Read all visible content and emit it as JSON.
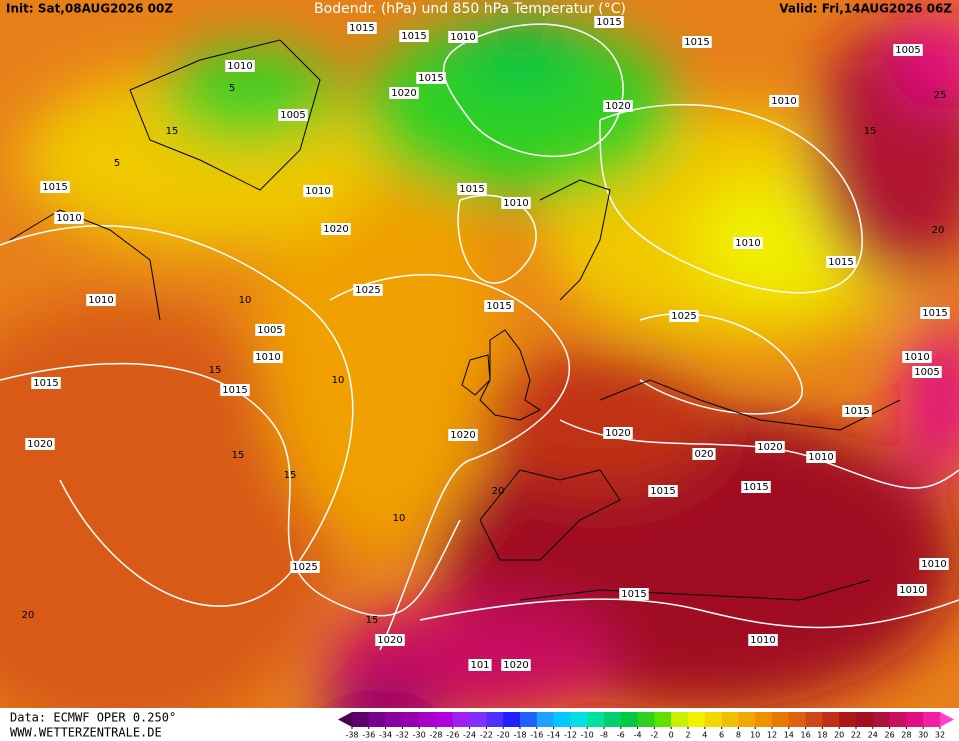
{
  "header": {
    "init": "Init: Sat,08AUG2026 00Z",
    "title": "Bodendr. (hPa) und 850 hPa Temperatur (°C)",
    "valid": "Valid: Fri,14AUG2026 06Z"
  },
  "footer": {
    "source": "Data: ECMWF OPER 0.250°",
    "site": "WWW.WETTERZENTRALE.DE"
  },
  "legend": {
    "ticks": [
      -38,
      -36,
      -34,
      -32,
      -30,
      -28,
      -26,
      -24,
      -22,
      -20,
      -18,
      -16,
      -14,
      -12,
      -10,
      -8,
      -6,
      -4,
      -2,
      0,
      2,
      4,
      6,
      8,
      10,
      12,
      14,
      16,
      18,
      20,
      22,
      24,
      26,
      28,
      30,
      32
    ],
    "colors": [
      "#4b0050",
      "#600070",
      "#7a0090",
      "#8800a0",
      "#9400b0",
      "#a800c8",
      "#b000e0",
      "#a020f0",
      "#8030ff",
      "#5030ff",
      "#2020ff",
      "#2060ff",
      "#20a0ff",
      "#00c8ff",
      "#00e0e0",
      "#00e0a0",
      "#00d070",
      "#00c840",
      "#30d020",
      "#60e000",
      "#c8f000",
      "#f0f000",
      "#f0d800",
      "#f0c000",
      "#f0a800",
      "#f09000",
      "#e87800",
      "#e06010",
      "#d04818",
      "#c03018",
      "#b01818",
      "#a01020",
      "#b01040",
      "#c81060",
      "#e01080",
      "#f020a0",
      "#ff40d0"
    ]
  },
  "isobar_labels": [
    1015,
    1015,
    1010,
    1015,
    1015,
    1005,
    1010,
    1015,
    1020,
    1005,
    1020,
    1010,
    1015,
    1010,
    1015,
    1010,
    1010,
    1020,
    1010,
    1015,
    1025,
    1015,
    1010,
    1005,
    1025,
    1015,
    1010,
    1010,
    1005,
    1015,
    1015,
    1015,
    1020,
    1020,
    1020,
    1020,
    "020",
    1010,
    1015,
    1015,
    1025,
    1010,
    1010,
    1015,
    1020,
    1010,
    101,
    1020
  ],
  "contour_labels": [
    5,
    5,
    15,
    10,
    15,
    10,
    15,
    15,
    10,
    20,
    20,
    15,
    25,
    15,
    20
  ]
}
